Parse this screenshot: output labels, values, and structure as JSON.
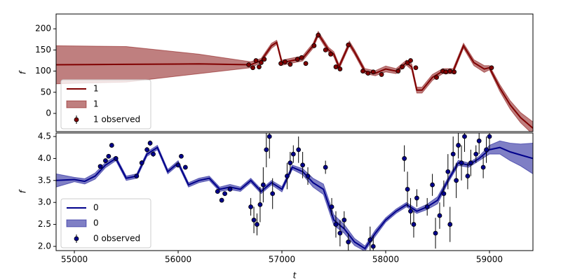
{
  "chart_data": [
    {
      "type": "line",
      "ylabel": "f",
      "xlim": [
        54824,
        59419
      ],
      "ylim": [
        -43,
        235
      ],
      "yticks": [
        0,
        50,
        100,
        150,
        200
      ],
      "legend": "lower left",
      "series": [
        {
          "name": "1",
          "kind": "line",
          "color": "#800000",
          "x": [
            54824,
            55500,
            56200,
            56700,
            56800,
            56900,
            56950,
            57000,
            57100,
            57200,
            57300,
            57350,
            57450,
            57500,
            57550,
            57650,
            57700,
            57800,
            57900,
            58000,
            58100,
            58200,
            58250,
            58300,
            58350,
            58450,
            58550,
            58650,
            58750,
            58850,
            58950,
            59000,
            59100,
            59200,
            59300,
            59419
          ],
          "values": [
            115,
            116,
            117,
            115,
            125,
            160,
            168,
            120,
            125,
            130,
            160,
            188,
            150,
            140,
            110,
            165,
            145,
            100,
            95,
            105,
            100,
            120,
            110,
            55,
            55,
            85,
            100,
            100,
            160,
            120,
            105,
            108,
            60,
            20,
            -10,
            -35
          ]
        },
        {
          "name": "1",
          "kind": "band",
          "color": "#800000",
          "x": [
            54824,
            55500,
            56200,
            56700,
            56800,
            56900,
            56950,
            57000,
            57100,
            57200,
            57300,
            57350,
            57450,
            57500,
            57550,
            57650,
            57700,
            57800,
            57900,
            58000,
            58100,
            58200,
            58250,
            58300,
            58350,
            58450,
            58550,
            58650,
            58750,
            58850,
            58950,
            59000,
            59100,
            59200,
            59300,
            59419
          ],
          "values": [
            115,
            116,
            117,
            115,
            125,
            160,
            168,
            120,
            125,
            130,
            160,
            188,
            150,
            140,
            110,
            165,
            145,
            100,
            95,
            105,
            100,
            120,
            110,
            55,
            55,
            85,
            100,
            100,
            160,
            120,
            105,
            108,
            60,
            20,
            -10,
            -35
          ],
          "errors": [
            45,
            42,
            23,
            7,
            5,
            6,
            5,
            6,
            6,
            6,
            6,
            6,
            6,
            6,
            6,
            6,
            6,
            6,
            6,
            7,
            6,
            6,
            7,
            7,
            7,
            7,
            6,
            6,
            6,
            7,
            8,
            5,
            8,
            10,
            12,
            15
          ]
        },
        {
          "name": "1 observed",
          "kind": "errorbar",
          "color": "#800000",
          "x": [
            56680,
            56720,
            56750,
            56780,
            56800,
            56830,
            56990,
            57030,
            57080,
            57150,
            57190,
            57230,
            57310,
            57350,
            57420,
            57470,
            57520,
            57560,
            57640,
            57780,
            57830,
            57880,
            57960,
            58120,
            58160,
            58210,
            58240,
            58290,
            58490,
            58550,
            58580,
            58620,
            58660,
            59020
          ],
          "values": [
            115,
            108,
            125,
            110,
            120,
            128,
            118,
            122,
            116,
            128,
            132,
            118,
            160,
            185,
            150,
            140,
            110,
            105,
            162,
            100,
            95,
            98,
            92,
            100,
            110,
            120,
            125,
            108,
            85,
            100,
            98,
            100,
            98,
            108
          ],
          "errors": [
            3,
            3,
            3,
            3,
            3,
            3,
            3,
            3,
            3,
            3,
            3,
            3,
            3,
            3,
            3,
            3,
            3,
            3,
            3,
            3,
            3,
            3,
            3,
            3,
            3,
            3,
            3,
            3,
            3,
            3,
            3,
            3,
            3,
            3
          ]
        }
      ]
    },
    {
      "type": "line",
      "ylabel": "f",
      "xlabel": "t",
      "xlim": [
        54824,
        59419
      ],
      "ylim": [
        1.904,
        4.58
      ],
      "xticks": [
        55000,
        56000,
        57000,
        58000,
        59000
      ],
      "yticks": [
        {
          "value": 2,
          "label": "2.0"
        },
        2.5,
        {
          "value": 3,
          "label": "3.0"
        },
        3.5,
        {
          "value": 4,
          "label": "4.0"
        },
        4.5
      ],
      "legend": "lower left",
      "series": [
        {
          "name": "0",
          "kind": "line",
          "color": "#00008b",
          "x": [
            54824,
            55000,
            55100,
            55200,
            55300,
            55400,
            55500,
            55600,
            55700,
            55800,
            55900,
            56000,
            56100,
            56200,
            56300,
            56400,
            56500,
            56600,
            56700,
            56800,
            56900,
            57000,
            57100,
            57200,
            57300,
            57400,
            57500,
            57600,
            57700,
            57800,
            57900,
            58000,
            58100,
            58200,
            58300,
            58400,
            58500,
            58600,
            58700,
            58800,
            58900,
            59000,
            59100,
            59200,
            59300,
            59419
          ],
          "values": [
            3.5,
            3.52,
            3.48,
            3.6,
            3.85,
            4.0,
            3.55,
            3.6,
            4.1,
            4.25,
            3.7,
            3.9,
            3.4,
            3.5,
            3.55,
            3.3,
            3.35,
            3.3,
            3.5,
            3.25,
            3.45,
            3.3,
            3.8,
            3.7,
            3.45,
            3.3,
            2.6,
            2.4,
            2.1,
            1.95,
            2.3,
            2.6,
            2.8,
            2.95,
            2.8,
            2.9,
            3.05,
            3.5,
            3.9,
            3.85,
            4.0,
            4.2,
            4.25,
            4.15,
            4.08,
            4.0
          ]
        },
        {
          "name": "0",
          "kind": "band",
          "color": "#00008b",
          "x": [
            54824,
            55000,
            55100,
            55200,
            55300,
            55400,
            55500,
            55600,
            55700,
            55800,
            55900,
            56000,
            56100,
            56200,
            56300,
            56400,
            56500,
            56600,
            56700,
            56800,
            56900,
            57000,
            57100,
            57200,
            57300,
            57400,
            57500,
            57600,
            57700,
            57800,
            57900,
            58000,
            58100,
            58200,
            58300,
            58400,
            58500,
            58600,
            58700,
            58800,
            58900,
            59000,
            59100,
            59200,
            59300,
            59419
          ],
          "values": [
            3.5,
            3.52,
            3.48,
            3.6,
            3.85,
            4.0,
            3.55,
            3.6,
            4.1,
            4.25,
            3.7,
            3.9,
            3.4,
            3.5,
            3.55,
            3.3,
            3.35,
            3.3,
            3.5,
            3.25,
            3.45,
            3.3,
            3.8,
            3.7,
            3.45,
            3.3,
            2.6,
            2.4,
            2.1,
            1.95,
            2.3,
            2.6,
            2.8,
            2.95,
            2.8,
            2.9,
            3.05,
            3.5,
            3.9,
            3.85,
            4.0,
            4.2,
            4.25,
            4.15,
            4.08,
            4.0
          ],
          "errors": [
            0.15,
            0.05,
            0.06,
            0.07,
            0.06,
            0.05,
            0.05,
            0.05,
            0.05,
            0.05,
            0.05,
            0.05,
            0.05,
            0.05,
            0.05,
            0.05,
            0.06,
            0.05,
            0.05,
            0.05,
            0.05,
            0.06,
            0.05,
            0.07,
            0.1,
            0.12,
            0.12,
            0.1,
            0.08,
            0.06,
            0.07,
            0.05,
            0.05,
            0.05,
            0.05,
            0.06,
            0.08,
            0.06,
            0.06,
            0.05,
            0.05,
            0.1,
            0.15,
            0.2,
            0.25,
            0.35
          ]
        },
        {
          "name": "0 observed",
          "kind": "errorbar",
          "color": "#00008b",
          "x": [
            55250,
            55300,
            55330,
            55360,
            55400,
            55600,
            55650,
            55700,
            55730,
            55760,
            56000,
            56030,
            56070,
            56380,
            56420,
            56450,
            56500,
            56700,
            56730,
            56760,
            56790,
            56820,
            56850,
            56880,
            56910,
            57050,
            57080,
            57110,
            57160,
            57200,
            57250,
            57420,
            57480,
            57520,
            57560,
            57600,
            57640,
            57850,
            57880,
            58180,
            58210,
            58240,
            58270,
            58300,
            58400,
            58450,
            58480,
            58520,
            58560,
            58600,
            58620,
            58650,
            58680,
            58700,
            58730,
            58760,
            58790,
            58820,
            58870,
            58900,
            58940,
            58970,
            59000
          ],
          "values": [
            3.82,
            3.95,
            4.05,
            4.3,
            4.0,
            3.6,
            3.9,
            4.2,
            4.35,
            4.1,
            3.85,
            4.05,
            3.8,
            3.25,
            3.05,
            3.2,
            3.3,
            2.9,
            2.6,
            2.5,
            2.95,
            3.4,
            4.2,
            4.5,
            3.2,
            3.6,
            3.9,
            4.1,
            4.2,
            3.85,
            3.6,
            3.8,
            2.9,
            2.5,
            2.3,
            2.6,
            2.1,
            2.15,
            2.0,
            4.0,
            3.3,
            2.8,
            2.5,
            3.1,
            2.9,
            3.4,
            2.3,
            2.7,
            3.2,
            3.7,
            2.5,
            4.1,
            3.5,
            4.3,
            3.9,
            4.5,
            3.6,
            3.9,
            4.1,
            4.4,
            3.8,
            4.2,
            4.5
          ],
          "errors": [
            0.05,
            0.05,
            0.05,
            0.05,
            0.05,
            0.05,
            0.06,
            0.06,
            0.06,
            0.06,
            0.05,
            0.05,
            0.05,
            0.05,
            0.05,
            0.05,
            0.05,
            0.2,
            0.3,
            0.25,
            0.4,
            0.4,
            0.4,
            0.5,
            0.35,
            0.3,
            0.25,
            0.2,
            0.3,
            0.3,
            0.2,
            0.15,
            0.2,
            0.3,
            0.3,
            0.2,
            0.2,
            0.3,
            0.25,
            0.3,
            0.4,
            0.3,
            0.3,
            0.2,
            0.2,
            0.25,
            0.35,
            0.3,
            0.3,
            0.4,
            0.4,
            0.4,
            0.4,
            0.3,
            0.4,
            0.35,
            0.3,
            0.3,
            0.2,
            0.3,
            0.25,
            0.3,
            0.3
          ]
        }
      ]
    }
  ]
}
